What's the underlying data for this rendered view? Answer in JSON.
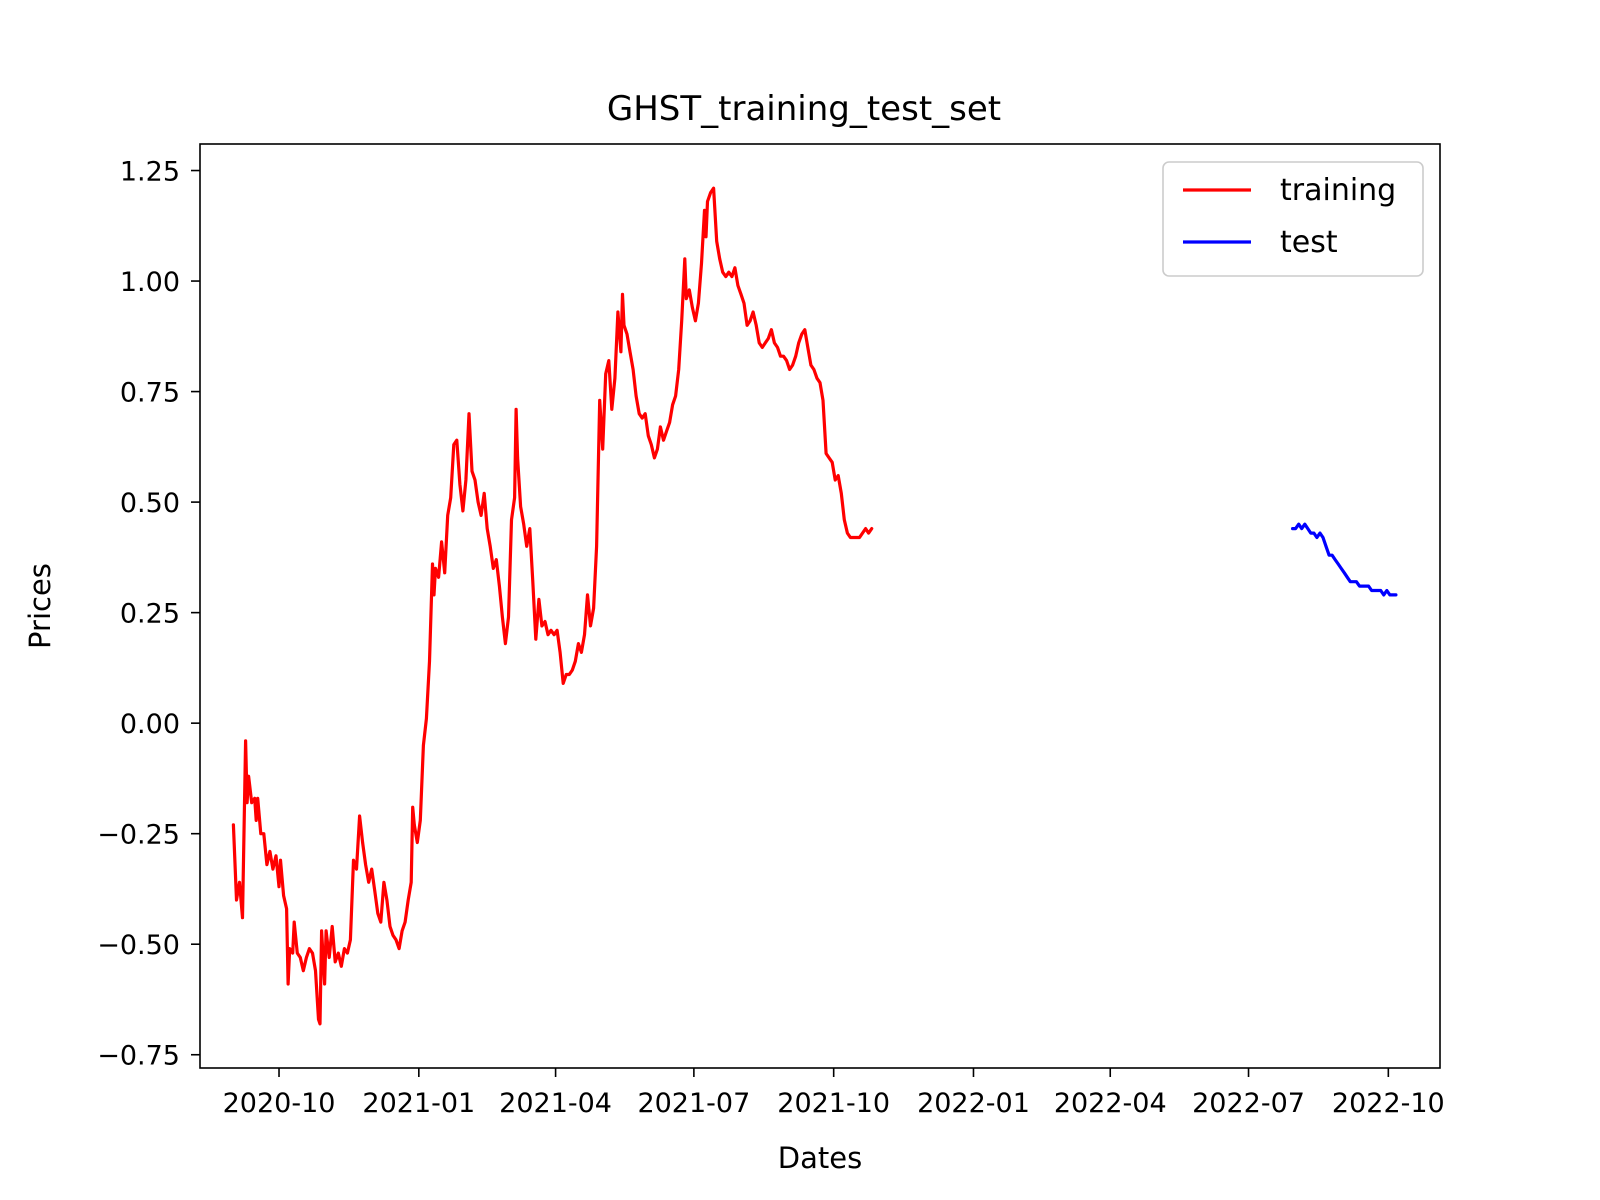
{
  "chart_data": {
    "type": "line",
    "title": "GHST_training_test_set",
    "xlabel": "Dates",
    "ylabel": "Prices",
    "xlim": [
      "2020-08-10",
      "2022-11-04"
    ],
    "ylim": [
      -0.78,
      1.31
    ],
    "x_ticks": [
      {
        "date": "2020-10-01",
        "label": "2020-10"
      },
      {
        "date": "2021-01-01",
        "label": "2021-01"
      },
      {
        "date": "2021-04-01",
        "label": "2021-04"
      },
      {
        "date": "2021-07-01",
        "label": "2021-07"
      },
      {
        "date": "2021-10-01",
        "label": "2021-10"
      },
      {
        "date": "2022-01-01",
        "label": "2022-01"
      },
      {
        "date": "2022-04-01",
        "label": "2022-04"
      },
      {
        "date": "2022-07-01",
        "label": "2022-07"
      },
      {
        "date": "2022-10-01",
        "label": "2022-10"
      }
    ],
    "y_ticks": [
      {
        "value": 1.25,
        "label": "1.25"
      },
      {
        "value": 1.0,
        "label": "1.00"
      },
      {
        "value": 0.75,
        "label": "0.75"
      },
      {
        "value": 0.5,
        "label": "0.50"
      },
      {
        "value": 0.25,
        "label": "0.25"
      },
      {
        "value": 0.0,
        "label": "0.00"
      },
      {
        "value": -0.25,
        "label": "−0.25"
      },
      {
        "value": -0.5,
        "label": "−0.50"
      },
      {
        "value": -0.75,
        "label": "−0.75"
      }
    ],
    "legend_position": "top-right",
    "grid": false,
    "series": [
      {
        "name": "training",
        "color": "#ff0000",
        "points": [
          [
            "2020-09-01",
            -0.23
          ],
          [
            "2020-09-03",
            -0.4
          ],
          [
            "2020-09-05",
            -0.36
          ],
          [
            "2020-09-07",
            -0.44
          ],
          [
            "2020-09-09",
            -0.04
          ],
          [
            "2020-09-10",
            -0.18
          ],
          [
            "2020-09-11",
            -0.12
          ],
          [
            "2020-09-13",
            -0.18
          ],
          [
            "2020-09-15",
            -0.17
          ],
          [
            "2020-09-16",
            -0.22
          ],
          [
            "2020-09-17",
            -0.17
          ],
          [
            "2020-09-19",
            -0.25
          ],
          [
            "2020-09-21",
            -0.25
          ],
          [
            "2020-09-23",
            -0.32
          ],
          [
            "2020-09-25",
            -0.29
          ],
          [
            "2020-09-27",
            -0.33
          ],
          [
            "2020-09-29",
            -0.3
          ],
          [
            "2020-10-01",
            -0.37
          ],
          [
            "2020-10-02",
            -0.31
          ],
          [
            "2020-10-04",
            -0.39
          ],
          [
            "2020-10-06",
            -0.42
          ],
          [
            "2020-10-07",
            -0.59
          ],
          [
            "2020-10-08",
            -0.51
          ],
          [
            "2020-10-10",
            -0.52
          ],
          [
            "2020-10-11",
            -0.45
          ],
          [
            "2020-10-13",
            -0.52
          ],
          [
            "2020-10-15",
            -0.53
          ],
          [
            "2020-10-17",
            -0.56
          ],
          [
            "2020-10-19",
            -0.53
          ],
          [
            "2020-10-21",
            -0.51
          ],
          [
            "2020-10-23",
            -0.52
          ],
          [
            "2020-10-25",
            -0.56
          ],
          [
            "2020-10-27",
            -0.67
          ],
          [
            "2020-10-28",
            -0.68
          ],
          [
            "2020-10-29",
            -0.47
          ],
          [
            "2020-10-31",
            -0.59
          ],
          [
            "2020-11-01",
            -0.47
          ],
          [
            "2020-11-03",
            -0.53
          ],
          [
            "2020-11-05",
            -0.46
          ],
          [
            "2020-11-07",
            -0.54
          ],
          [
            "2020-11-09",
            -0.52
          ],
          [
            "2020-11-11",
            -0.55
          ],
          [
            "2020-11-13",
            -0.51
          ],
          [
            "2020-11-15",
            -0.52
          ],
          [
            "2020-11-17",
            -0.49
          ],
          [
            "2020-11-19",
            -0.31
          ],
          [
            "2020-11-21",
            -0.33
          ],
          [
            "2020-11-23",
            -0.21
          ],
          [
            "2020-11-25",
            -0.27
          ],
          [
            "2020-11-27",
            -0.32
          ],
          [
            "2020-11-29",
            -0.36
          ],
          [
            "2020-12-01",
            -0.33
          ],
          [
            "2020-12-03",
            -0.38
          ],
          [
            "2020-12-05",
            -0.43
          ],
          [
            "2020-12-07",
            -0.45
          ],
          [
            "2020-12-09",
            -0.36
          ],
          [
            "2020-12-11",
            -0.4
          ],
          [
            "2020-12-13",
            -0.46
          ],
          [
            "2020-12-15",
            -0.48
          ],
          [
            "2020-12-17",
            -0.49
          ],
          [
            "2020-12-19",
            -0.51
          ],
          [
            "2020-12-21",
            -0.47
          ],
          [
            "2020-12-23",
            -0.45
          ],
          [
            "2020-12-25",
            -0.4
          ],
          [
            "2020-12-27",
            -0.36
          ],
          [
            "2020-12-28",
            -0.19
          ],
          [
            "2020-12-29",
            -0.23
          ],
          [
            "2020-12-31",
            -0.27
          ],
          [
            "2021-01-02",
            -0.22
          ],
          [
            "2021-01-04",
            -0.05
          ],
          [
            "2021-01-06",
            0.01
          ],
          [
            "2021-01-08",
            0.14
          ],
          [
            "2021-01-10",
            0.36
          ],
          [
            "2021-01-11",
            0.29
          ],
          [
            "2021-01-12",
            0.35
          ],
          [
            "2021-01-14",
            0.33
          ],
          [
            "2021-01-16",
            0.41
          ],
          [
            "2021-01-18",
            0.34
          ],
          [
            "2021-01-20",
            0.47
          ],
          [
            "2021-01-22",
            0.51
          ],
          [
            "2021-01-24",
            0.63
          ],
          [
            "2021-01-26",
            0.64
          ],
          [
            "2021-01-28",
            0.54
          ],
          [
            "2021-01-30",
            0.48
          ],
          [
            "2021-02-01",
            0.55
          ],
          [
            "2021-02-03",
            0.7
          ],
          [
            "2021-02-05",
            0.57
          ],
          [
            "2021-02-07",
            0.55
          ],
          [
            "2021-02-09",
            0.5
          ],
          [
            "2021-02-11",
            0.47
          ],
          [
            "2021-02-13",
            0.52
          ],
          [
            "2021-02-15",
            0.44
          ],
          [
            "2021-02-17",
            0.4
          ],
          [
            "2021-02-19",
            0.35
          ],
          [
            "2021-02-21",
            0.37
          ],
          [
            "2021-02-23",
            0.31
          ],
          [
            "2021-02-25",
            0.24
          ],
          [
            "2021-02-27",
            0.18
          ],
          [
            "2021-03-01",
            0.24
          ],
          [
            "2021-03-03",
            0.46
          ],
          [
            "2021-03-05",
            0.51
          ],
          [
            "2021-03-06",
            0.71
          ],
          [
            "2021-03-07",
            0.6
          ],
          [
            "2021-03-09",
            0.49
          ],
          [
            "2021-03-11",
            0.45
          ],
          [
            "2021-03-13",
            0.4
          ],
          [
            "2021-03-15",
            0.44
          ],
          [
            "2021-03-17",
            0.32
          ],
          [
            "2021-03-19",
            0.19
          ],
          [
            "2021-03-21",
            0.28
          ],
          [
            "2021-03-23",
            0.22
          ],
          [
            "2021-03-25",
            0.23
          ],
          [
            "2021-03-27",
            0.2
          ],
          [
            "2021-03-29",
            0.21
          ],
          [
            "2021-03-31",
            0.2
          ],
          [
            "2021-04-02",
            0.21
          ],
          [
            "2021-04-04",
            0.16
          ],
          [
            "2021-04-06",
            0.09
          ],
          [
            "2021-04-08",
            0.11
          ],
          [
            "2021-04-10",
            0.11
          ],
          [
            "2021-04-12",
            0.12
          ],
          [
            "2021-04-14",
            0.14
          ],
          [
            "2021-04-16",
            0.18
          ],
          [
            "2021-04-18",
            0.16
          ],
          [
            "2021-04-20",
            0.2
          ],
          [
            "2021-04-22",
            0.29
          ],
          [
            "2021-04-24",
            0.22
          ],
          [
            "2021-04-26",
            0.26
          ],
          [
            "2021-04-28",
            0.4
          ],
          [
            "2021-04-30",
            0.73
          ],
          [
            "2021-05-02",
            0.62
          ],
          [
            "2021-05-04",
            0.79
          ],
          [
            "2021-05-06",
            0.82
          ],
          [
            "2021-05-08",
            0.71
          ],
          [
            "2021-05-10",
            0.78
          ],
          [
            "2021-05-12",
            0.93
          ],
          [
            "2021-05-14",
            0.84
          ],
          [
            "2021-05-15",
            0.97
          ],
          [
            "2021-05-16",
            0.9
          ],
          [
            "2021-05-18",
            0.88
          ],
          [
            "2021-05-20",
            0.84
          ],
          [
            "2021-05-22",
            0.8
          ],
          [
            "2021-05-24",
            0.74
          ],
          [
            "2021-05-26",
            0.7
          ],
          [
            "2021-05-28",
            0.69
          ],
          [
            "2021-05-30",
            0.7
          ],
          [
            "2021-06-01",
            0.65
          ],
          [
            "2021-06-03",
            0.63
          ],
          [
            "2021-06-05",
            0.6
          ],
          [
            "2021-06-07",
            0.62
          ],
          [
            "2021-06-09",
            0.67
          ],
          [
            "2021-06-11",
            0.64
          ],
          [
            "2021-06-13",
            0.66
          ],
          [
            "2021-06-15",
            0.68
          ],
          [
            "2021-06-17",
            0.72
          ],
          [
            "2021-06-19",
            0.74
          ],
          [
            "2021-06-21",
            0.8
          ],
          [
            "2021-06-23",
            0.91
          ],
          [
            "2021-06-25",
            1.05
          ],
          [
            "2021-06-26",
            0.96
          ],
          [
            "2021-06-28",
            0.98
          ],
          [
            "2021-06-30",
            0.94
          ],
          [
            "2021-07-02",
            0.91
          ],
          [
            "2021-07-04",
            0.95
          ],
          [
            "2021-07-06",
            1.04
          ],
          [
            "2021-07-08",
            1.16
          ],
          [
            "2021-07-09",
            1.1
          ],
          [
            "2021-07-10",
            1.18
          ],
          [
            "2021-07-12",
            1.2
          ],
          [
            "2021-07-14",
            1.21
          ],
          [
            "2021-07-16",
            1.09
          ],
          [
            "2021-07-18",
            1.05
          ],
          [
            "2021-07-20",
            1.02
          ],
          [
            "2021-07-22",
            1.01
          ],
          [
            "2021-07-24",
            1.02
          ],
          [
            "2021-07-26",
            1.01
          ],
          [
            "2021-07-28",
            1.03
          ],
          [
            "2021-07-30",
            0.99
          ],
          [
            "2021-08-01",
            0.97
          ],
          [
            "2021-08-03",
            0.95
          ],
          [
            "2021-08-05",
            0.9
          ],
          [
            "2021-08-07",
            0.91
          ],
          [
            "2021-08-09",
            0.93
          ],
          [
            "2021-08-11",
            0.9
          ],
          [
            "2021-08-13",
            0.86
          ],
          [
            "2021-08-15",
            0.85
          ],
          [
            "2021-08-17",
            0.86
          ],
          [
            "2021-08-19",
            0.87
          ],
          [
            "2021-08-21",
            0.89
          ],
          [
            "2021-08-23",
            0.86
          ],
          [
            "2021-08-25",
            0.85
          ],
          [
            "2021-08-27",
            0.83
          ],
          [
            "2021-08-29",
            0.83
          ],
          [
            "2021-08-31",
            0.82
          ],
          [
            "2021-09-02",
            0.8
          ],
          [
            "2021-09-04",
            0.81
          ],
          [
            "2021-09-06",
            0.83
          ],
          [
            "2021-09-08",
            0.86
          ],
          [
            "2021-09-10",
            0.88
          ],
          [
            "2021-09-12",
            0.89
          ],
          [
            "2021-09-14",
            0.85
          ],
          [
            "2021-09-16",
            0.81
          ],
          [
            "2021-09-18",
            0.8
          ],
          [
            "2021-09-20",
            0.78
          ],
          [
            "2021-09-22",
            0.77
          ],
          [
            "2021-09-24",
            0.73
          ],
          [
            "2021-09-26",
            0.61
          ],
          [
            "2021-09-28",
            0.6
          ],
          [
            "2021-09-30",
            0.59
          ],
          [
            "2021-10-02",
            0.55
          ],
          [
            "2021-10-04",
            0.56
          ],
          [
            "2021-10-06",
            0.52
          ],
          [
            "2021-10-08",
            0.46
          ],
          [
            "2021-10-10",
            0.43
          ],
          [
            "2021-10-12",
            0.42
          ],
          [
            "2021-10-14",
            0.42
          ],
          [
            "2021-10-16",
            0.42
          ],
          [
            "2021-10-18",
            0.42
          ],
          [
            "2021-10-20",
            0.43
          ],
          [
            "2021-10-22",
            0.44
          ],
          [
            "2021-10-24",
            0.43
          ],
          [
            "2021-10-26",
            0.44
          ]
        ]
      },
      {
        "name": "test",
        "color": "#0000ff",
        "points": [
          [
            "2022-07-30",
            0.44
          ],
          [
            "2022-08-01",
            0.44
          ],
          [
            "2022-08-03",
            0.45
          ],
          [
            "2022-08-05",
            0.44
          ],
          [
            "2022-08-07",
            0.45
          ],
          [
            "2022-08-09",
            0.44
          ],
          [
            "2022-08-11",
            0.43
          ],
          [
            "2022-08-13",
            0.43
          ],
          [
            "2022-08-15",
            0.42
          ],
          [
            "2022-08-17",
            0.43
          ],
          [
            "2022-08-19",
            0.42
          ],
          [
            "2022-08-21",
            0.4
          ],
          [
            "2022-08-23",
            0.38
          ],
          [
            "2022-08-25",
            0.38
          ],
          [
            "2022-08-27",
            0.37
          ],
          [
            "2022-08-29",
            0.36
          ],
          [
            "2022-08-31",
            0.35
          ],
          [
            "2022-09-02",
            0.34
          ],
          [
            "2022-09-04",
            0.33
          ],
          [
            "2022-09-06",
            0.32
          ],
          [
            "2022-09-08",
            0.32
          ],
          [
            "2022-09-10",
            0.32
          ],
          [
            "2022-09-12",
            0.31
          ],
          [
            "2022-09-14",
            0.31
          ],
          [
            "2022-09-16",
            0.31
          ],
          [
            "2022-09-18",
            0.31
          ],
          [
            "2022-09-20",
            0.3
          ],
          [
            "2022-09-22",
            0.3
          ],
          [
            "2022-09-24",
            0.3
          ],
          [
            "2022-09-26",
            0.3
          ],
          [
            "2022-09-28",
            0.29
          ],
          [
            "2022-09-30",
            0.3
          ],
          [
            "2022-10-02",
            0.29
          ],
          [
            "2022-10-04",
            0.29
          ],
          [
            "2022-10-06",
            0.29
          ]
        ]
      }
    ]
  }
}
